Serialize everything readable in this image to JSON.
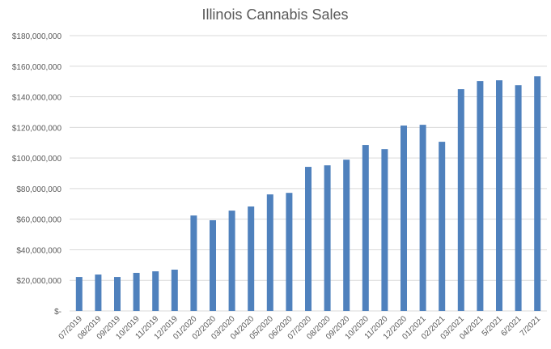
{
  "chart_data": {
    "type": "bar",
    "title": "Illinois Cannabis Sales",
    "xlabel": "",
    "ylabel": "",
    "ylim": [
      0,
      180000000
    ],
    "grid": true,
    "legend": "none",
    "bar_color": "#4F81BD",
    "yticks": [
      0,
      20000000,
      40000000,
      60000000,
      80000000,
      100000000,
      120000000,
      140000000,
      160000000,
      180000000
    ],
    "ytick_labels": [
      "$-",
      "$20,000,000",
      "$40,000,000",
      "$60,000,000",
      "$80,000,000",
      "$100,000,000",
      "$120,000,000",
      "$140,000,000",
      "$160,000,000",
      "$180,000,000"
    ],
    "categories": [
      "07/2019",
      "08/2019",
      "09/2019",
      "10/2019",
      "11/2019",
      "12/2019",
      "01/2020",
      "02/2020",
      "03/2020",
      "04/2020",
      "05/2020",
      "06/2020",
      "07/2020",
      "08/2020",
      "09/2020",
      "10/2020",
      "11/2020",
      "12/2020",
      "01/2021",
      "02/2021",
      "03/2021",
      "04/2021",
      "5/2021",
      "6/2021",
      "7/2021"
    ],
    "values": [
      22200000,
      23800000,
      22200000,
      24900000,
      25900000,
      27000000,
      62400000,
      59300000,
      65600000,
      68300000,
      76200000,
      77200000,
      94200000,
      95200000,
      98900000,
      108500000,
      105800000,
      121200000,
      121700000,
      110600000,
      145000000,
      150300000,
      150800000,
      147600000,
      153400000
    ]
  }
}
